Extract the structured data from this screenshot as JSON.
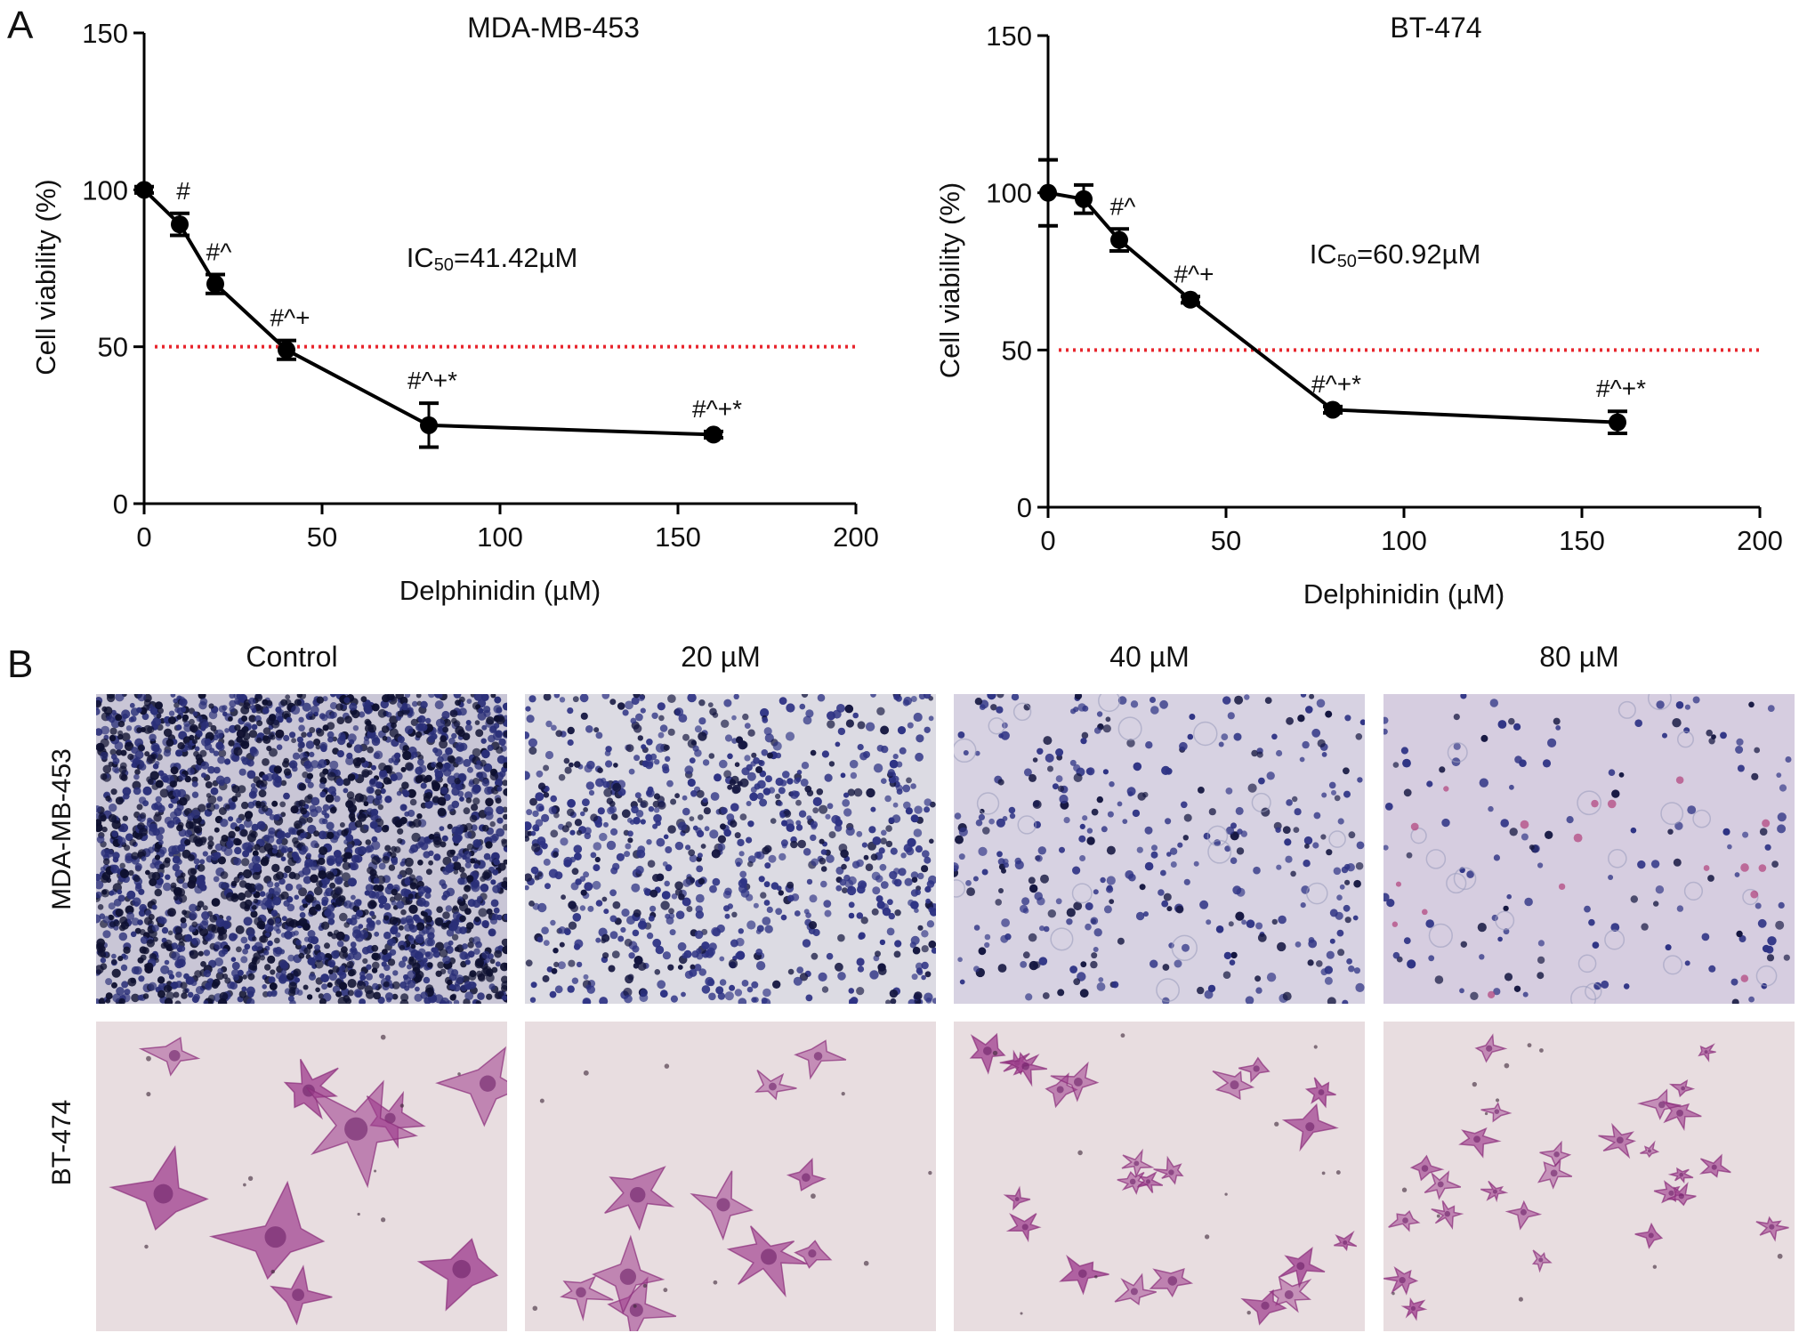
{
  "panel_a": {
    "letter": "A",
    "charts": [
      {
        "title": "MDA-MB-453",
        "annotation_prefix": "IC",
        "annotation_sub": "50",
        "annotation_value": "=41.42µM"
      },
      {
        "title": "BT-474",
        "annotation_prefix": "IC",
        "annotation_sub": "50",
        "annotation_value": "=60.92µM"
      }
    ]
  },
  "chart_data": [
    {
      "type": "line",
      "title": "MDA-MB-453",
      "xlabel": "Delphinidin (µM)",
      "ylabel": "Cell viability (%)",
      "xlim": [
        0,
        200
      ],
      "ylim": [
        0,
        150
      ],
      "xticks": [
        0,
        50,
        100,
        150,
        200
      ],
      "yticks": [
        0,
        50,
        100,
        150
      ],
      "x": [
        0,
        10,
        20,
        40,
        80,
        160
      ],
      "y": [
        100,
        89,
        70,
        49,
        25,
        22
      ],
      "err": [
        1,
        3.5,
        3,
        3,
        7,
        1
      ],
      "marks": [
        "",
        "#",
        "#^",
        "#^+",
        "#^+*",
        "#^+*"
      ],
      "reference_line": {
        "y": 50,
        "color": "#e8262d",
        "style": "dotted"
      },
      "annotation": "IC50=41.42µM",
      "grid": false,
      "line_color": "#000000"
    },
    {
      "type": "line",
      "title": "BT-474",
      "xlabel": "Delphinidin (µM)",
      "ylabel": "Cell viability (%)",
      "xlim": [
        0,
        200
      ],
      "ylim": [
        0,
        150
      ],
      "xticks": [
        0,
        50,
        100,
        150,
        200
      ],
      "yticks": [
        0,
        50,
        100,
        150
      ],
      "x": [
        0,
        10,
        20,
        40,
        80,
        160
      ],
      "y": [
        100,
        98,
        85,
        66,
        31,
        27
      ],
      "err": [
        10.5,
        4.5,
        3.5,
        1,
        1,
        3.5
      ],
      "marks": [
        "",
        "",
        "#^",
        "#^+",
        "#^+*",
        "#^+*"
      ],
      "reference_line": {
        "y": 50,
        "color": "#e8262d",
        "style": "dotted"
      },
      "annotation": "IC50=60.92µM",
      "grid": false,
      "line_color": "#000000"
    }
  ],
  "panel_b": {
    "letter": "B",
    "columns": [
      "Control",
      "20 µM",
      "40 µM",
      "80 µM"
    ],
    "rows": [
      "MDA-MB-453",
      "BT-474"
    ],
    "mda_stain_color": "#2b2f7a",
    "mda_bg_color": "#e9e6ee",
    "bt_stain_color": "#a0408f",
    "bt_bg_color": "#e8dde0"
  }
}
